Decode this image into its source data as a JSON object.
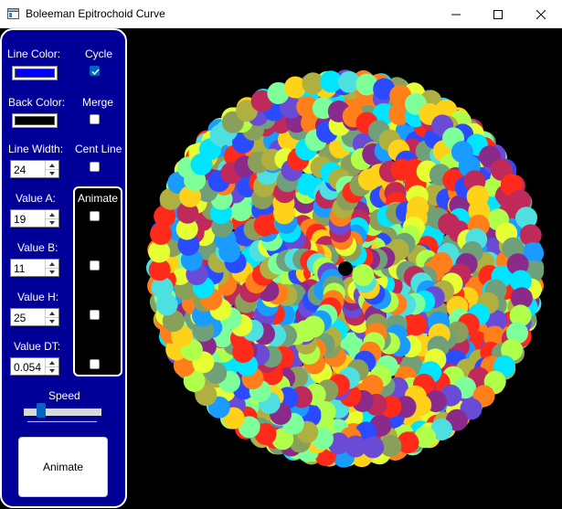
{
  "window": {
    "title": "Boleeman Epitrochoid Curve"
  },
  "controls": {
    "line_color_label": "Line Color:",
    "back_color_label": "Back Color:",
    "line_color": "#0000ff",
    "back_color": "#000000",
    "cycle_label": "Cycle",
    "cycle_checked": true,
    "merge_label": "Merge",
    "cent_line_label": "Cent Line",
    "animate_group_label": "Animate",
    "line_width_label": "Line Width:",
    "line_width": "24",
    "value_a_label": "Value A:",
    "value_a": "19",
    "value_b_label": "Value B:",
    "value_b": "11",
    "value_h_label": "Value H:",
    "value_h": "25",
    "value_dt_label": "Value DT:",
    "value_dt": "0.054",
    "speed_label": "Speed",
    "speed_level": 0.18,
    "animate_button": "Animate"
  },
  "colors": {
    "panel_background": "#000099",
    "canvas_background": "#000000",
    "accent": "#0067c0"
  }
}
